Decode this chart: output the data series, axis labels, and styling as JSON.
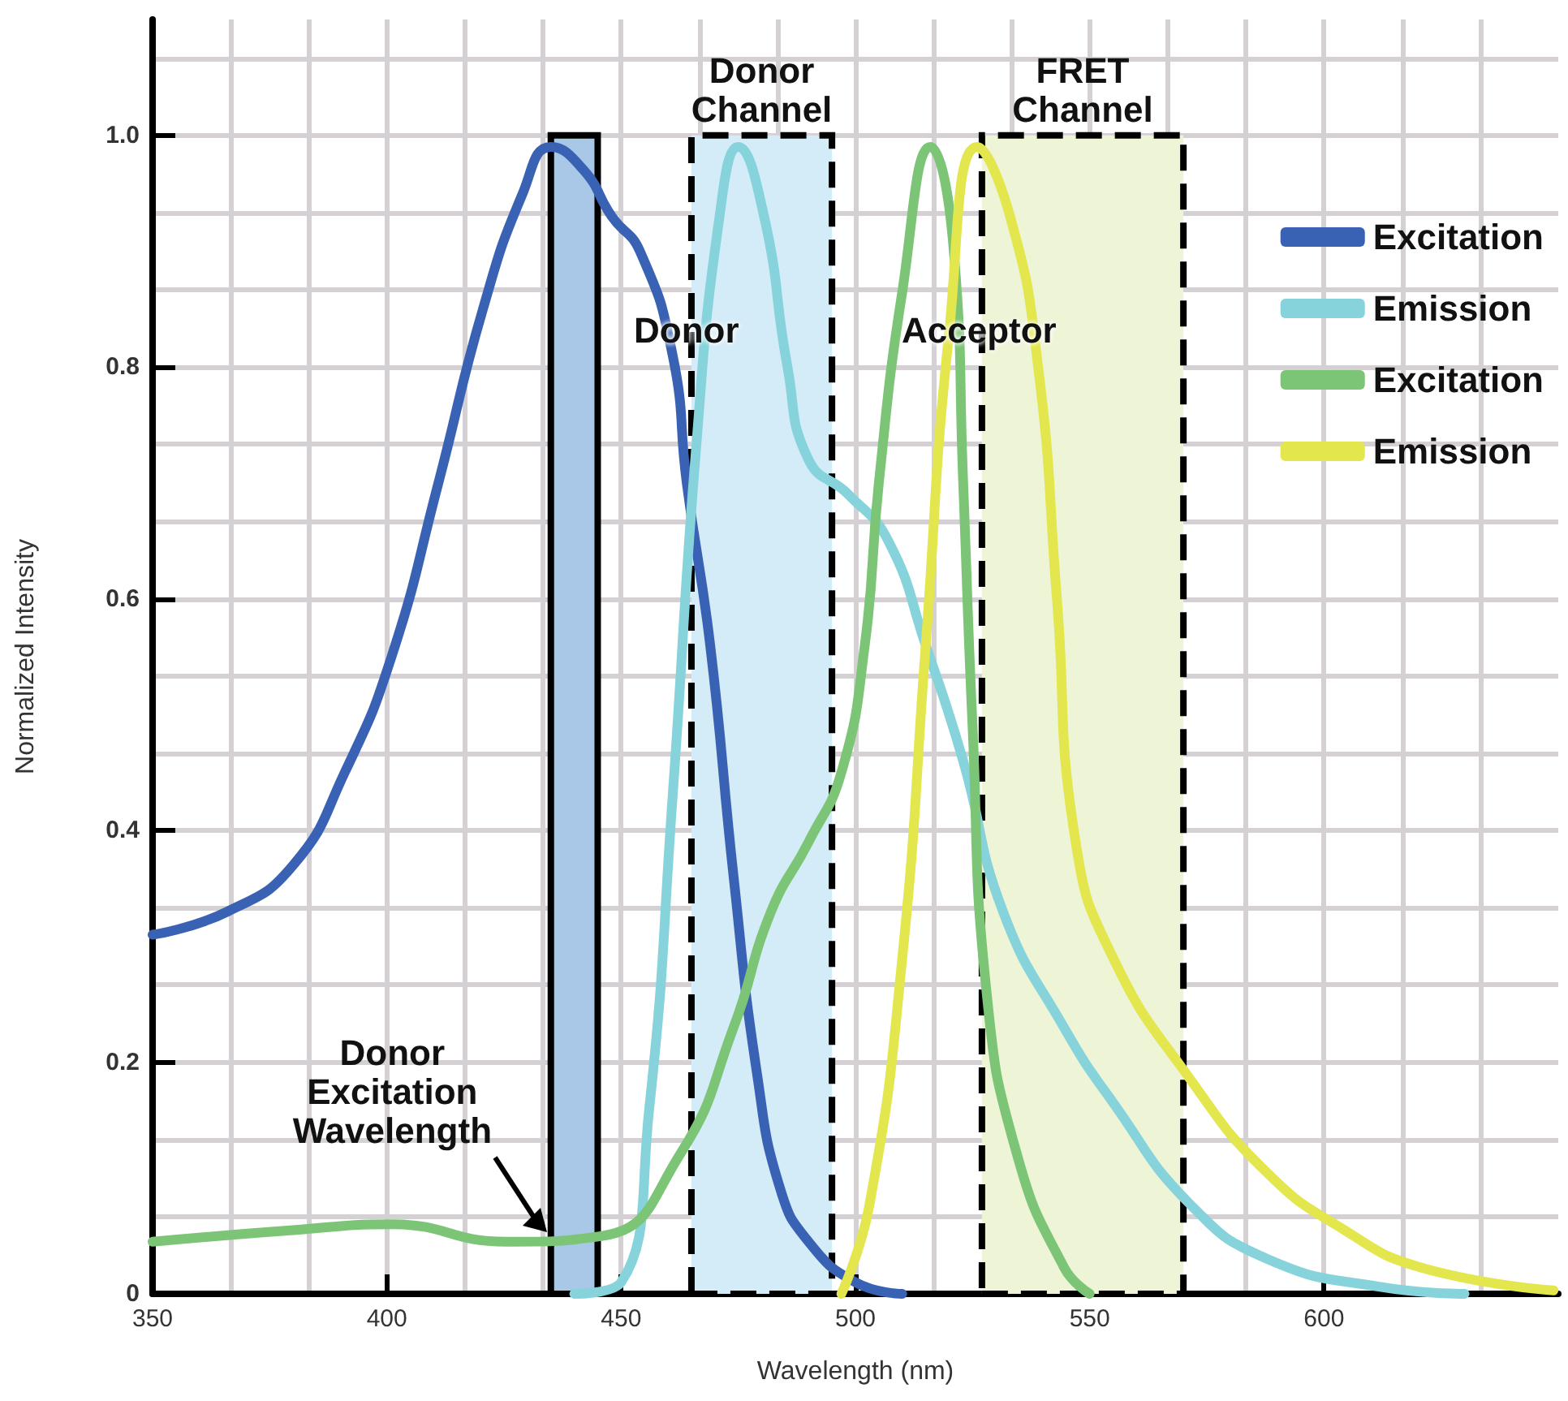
{
  "chart_data": {
    "type": "line",
    "xlabel": "Wavelength (nm)",
    "ylabel": "Normalized Intensity",
    "xlim": [
      350,
      650
    ],
    "xticks": [
      350,
      400,
      450,
      500,
      550,
      600
    ],
    "ylim": [
      0,
      1.1
    ],
    "yticks": [
      0,
      {
        "value": 0.2,
        "label": "0.2"
      },
      {
        "value": 0.4,
        "label": "0.4"
      },
      {
        "value": 0.6,
        "label": "0.6"
      },
      {
        "value": 0.8,
        "label": "0.8"
      },
      {
        "value": 1,
        "label": "1.0"
      }
    ],
    "grid": true,
    "legend": "top right",
    "marker": "none",
    "line_style": "solid",
    "series": [
      {
        "name": "Excitation",
        "color": "#3a62b4",
        "x": [
          350,
          366,
          380,
          391,
          401,
          411,
          420.5,
          429,
          435,
          442,
          448,
          454,
          461,
          464,
          469,
          474,
          479,
          484,
          490,
          500,
          510
        ],
        "values": [
          0.31,
          0.33,
          0.37,
          0.45,
          0.55,
          0.7,
          0.85,
          0.95,
          0.99,
          0.97,
          0.93,
          0.9,
          0.81,
          0.7,
          0.56,
          0.36,
          0.19,
          0.09,
          0.045,
          0.01,
          0
        ]
      },
      {
        "name": "Emission",
        "color": "#86d3dc",
        "x": [
          440,
          450,
          456,
          461,
          466,
          471,
          475,
          480.5,
          485.5,
          490,
          498.5,
          507,
          515,
          523,
          531.5,
          544.5,
          555,
          571.5,
          588,
          612,
          630
        ],
        "values": [
          0,
          0.01,
          0.16,
          0.43,
          0.73,
          0.93,
          0.99,
          0.93,
          0.8,
          0.72,
          0.69,
          0.65,
          0.56,
          0.46,
          0.33,
          0.23,
          0.165,
          0.077,
          0.03,
          0.006,
          0
        ]
      },
      {
        "name": "Excitation",
        "color": "#7cc576",
        "x": [
          350,
          380,
          401,
          425.5,
          446,
          462.5,
          474,
          482,
          490,
          497,
          502,
          505,
          510,
          516,
          521,
          523,
          525,
          528,
          534.5,
          544.5,
          550
        ],
        "values": [
          0.045,
          0.055,
          0.06,
          0.045,
          0.05,
          0.12,
          0.23,
          0.33,
          0.39,
          0.45,
          0.56,
          0.7,
          0.865,
          0.99,
          0.9,
          0.7,
          0.49,
          0.26,
          0.12,
          0.023,
          0
        ]
      },
      {
        "name": "Emission",
        "color": "#e3e64c",
        "x": [
          497,
          503,
          510,
          515,
          520,
          526,
          533,
          539,
          543,
          547,
          555,
          571.5,
          588,
          604,
          620.5,
          649
        ],
        "values": [
          0,
          0.077,
          0.29,
          0.56,
          0.83,
          0.99,
          0.93,
          0.8,
          0.6,
          0.39,
          0.29,
          0.185,
          0.104,
          0.056,
          0.023,
          0.003
        ]
      }
    ],
    "bands": [
      {
        "axis": "x",
        "from": 435,
        "to": 445,
        "color": "#a9c8e8"
      },
      {
        "axis": "x",
        "from": 465,
        "to": 495,
        "label": "Donor\nChannel",
        "color": "#d3ecf7"
      },
      {
        "axis": "x",
        "from": 527,
        "to": 570,
        "label": "FRET\nChannel",
        "color": "#eef4d6"
      }
    ],
    "annotations": [
      "Donor",
      "Acceptor",
      {
        "text": "Donor\nExcitation\nWavelength",
        "x": 435,
        "y": 0.05
      }
    ]
  }
}
